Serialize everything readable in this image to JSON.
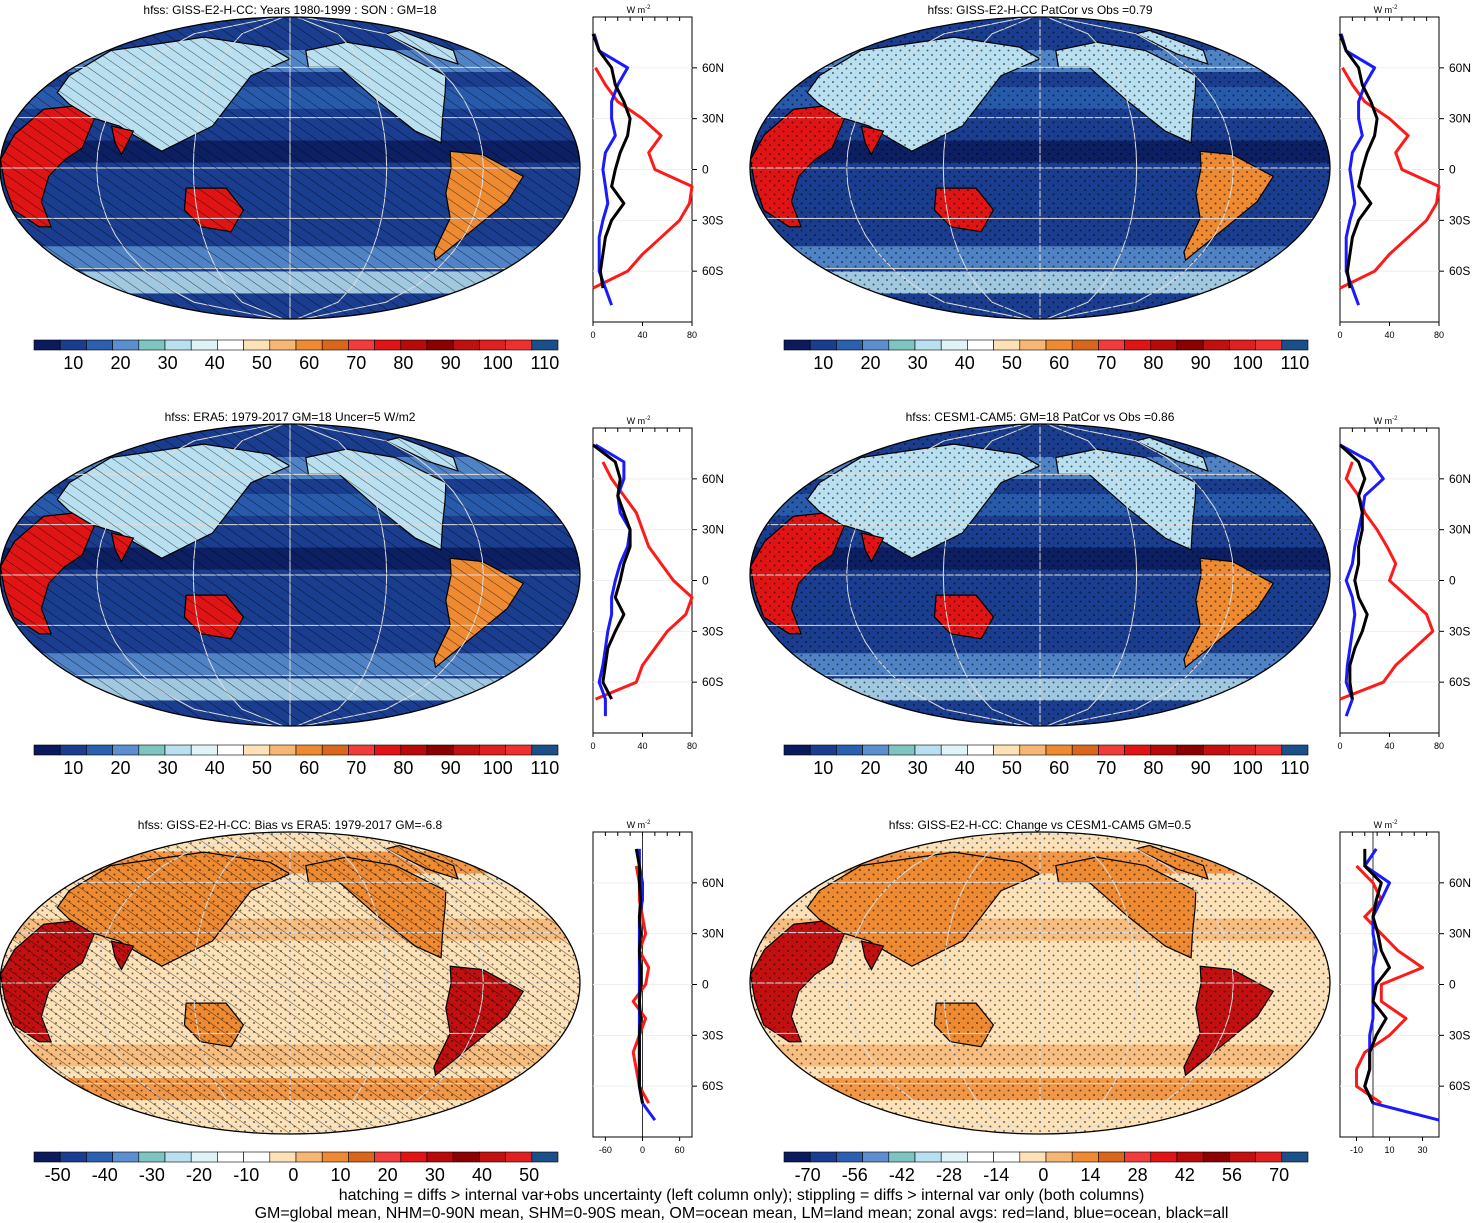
{
  "colors": {
    "abs_scale": [
      "#0b1a5c",
      "#1a3d8f",
      "#2b5fb0",
      "#5b8fd0",
      "#7ec4c0",
      "#b8e0f0",
      "#e0f4f8",
      "#ffffff",
      "#fde2b8",
      "#f7b774",
      "#ee8a32",
      "#d9661a",
      "#f23b3b",
      "#e01414",
      "#b80a0a",
      "#8b0000",
      "#c21010",
      "#e02020",
      "#ee3030",
      "#1a4f8a"
    ],
    "diff_scale": [
      "#0b1a5c",
      "#1a3d8f",
      "#2b5fb0",
      "#5b8fd0",
      "#7ec4c0",
      "#b8e0f0",
      "#e0f4f8",
      "#ffffff",
      "#ffffff",
      "#fde2b8",
      "#f7b774",
      "#ee8a32",
      "#d9661a",
      "#f23b3b",
      "#e01414",
      "#b80a0a",
      "#8b0000",
      "#c21010",
      "#e02020",
      "#1a4f8a"
    ],
    "land_line": "#ff1a1a",
    "ocean_line": "#1a1aff",
    "all_line": "#000000"
  },
  "chart_data": [
    {
      "type": "heatmap",
      "title": "hfss: GISS-E2-H-CC: Years 1980-1999 : SON : GM=18",
      "hatching": true,
      "stippling": false,
      "colorbar_labels": [
        "10",
        "20",
        "30",
        "40",
        "50",
        "60",
        "70",
        "80",
        "90",
        "100",
        "110"
      ],
      "zonal": {
        "unit": "W m-2",
        "lat_labels": [
          "60N",
          "30N",
          "0",
          "30S",
          "60S"
        ],
        "xticks": [
          "0",
          "40",
          "80"
        ],
        "xlim": [
          0,
          80
        ],
        "lat": [
          80,
          70,
          60,
          50,
          40,
          30,
          20,
          10,
          0,
          -10,
          -20,
          -30,
          -40,
          -50,
          -60,
          -70,
          -80
        ],
        "land": [
          null,
          null,
          2,
          10,
          20,
          40,
          55,
          45,
          50,
          80,
          78,
          70,
          55,
          40,
          28,
          0,
          null
        ],
        "ocean": [
          1,
          5,
          28,
          20,
          15,
          15,
          18,
          10,
          8,
          10,
          12,
          8,
          5,
          5,
          5,
          10,
          15
        ],
        "all": [
          0,
          5,
          15,
          18,
          25,
          30,
          28,
          22,
          18,
          15,
          25,
          15,
          10,
          8,
          6,
          8,
          null
        ]
      }
    },
    {
      "type": "heatmap",
      "title": "hfss: GISS-E2-H-CC PatCor vs Obs =0.79",
      "hatching": false,
      "stippling": true,
      "colorbar_labels": [
        "10",
        "20",
        "30",
        "40",
        "50",
        "60",
        "70",
        "80",
        "90",
        "100",
        "110"
      ],
      "zonal": {
        "unit": "W m-2",
        "lat_labels": [
          "60N",
          "30N",
          "0",
          "30S",
          "60S"
        ],
        "xticks": [
          "0",
          "40",
          "80"
        ],
        "xlim": [
          0,
          80
        ],
        "lat": [
          80,
          70,
          60,
          50,
          40,
          30,
          20,
          10,
          0,
          -10,
          -20,
          -30,
          -40,
          -50,
          -60,
          -70,
          -80
        ],
        "land": [
          null,
          null,
          2,
          10,
          20,
          40,
          55,
          45,
          50,
          80,
          78,
          70,
          55,
          40,
          28,
          0,
          null
        ],
        "ocean": [
          1,
          5,
          28,
          20,
          15,
          15,
          18,
          10,
          8,
          10,
          12,
          8,
          5,
          5,
          5,
          10,
          15
        ],
        "all": [
          0,
          5,
          15,
          18,
          25,
          30,
          28,
          22,
          18,
          15,
          25,
          15,
          10,
          8,
          6,
          8,
          null
        ]
      }
    },
    {
      "type": "heatmap",
      "title": "hfss: ERA5: 1979-2017 GM=18 Uncer=5 W/m2",
      "hatching": true,
      "stippling": false,
      "colorbar_labels": [
        "10",
        "20",
        "30",
        "40",
        "50",
        "60",
        "70",
        "80",
        "90",
        "100",
        "110"
      ],
      "zonal": {
        "unit": "W m-2",
        "lat_labels": [
          "60N",
          "30N",
          "0",
          "30S",
          "60S"
        ],
        "xticks": [
          "0",
          "40",
          "80"
        ],
        "xlim": [
          0,
          80
        ],
        "lat": [
          80,
          70,
          60,
          50,
          40,
          30,
          20,
          10,
          0,
          -10,
          -20,
          -30,
          -40,
          -50,
          -60,
          -70,
          -80
        ],
        "land": [
          null,
          8,
          15,
          25,
          35,
          40,
          45,
          55,
          65,
          80,
          75,
          60,
          50,
          40,
          35,
          2,
          null
        ],
        "ocean": [
          2,
          25,
          25,
          20,
          22,
          30,
          28,
          22,
          18,
          15,
          15,
          12,
          10,
          8,
          5,
          10,
          10
        ],
        "all": [
          0,
          18,
          22,
          20,
          25,
          30,
          30,
          25,
          22,
          18,
          25,
          18,
          12,
          10,
          8,
          15,
          null
        ]
      }
    },
    {
      "type": "heatmap",
      "title": "hfss: CESM1-CAM5: GM=18 PatCor vs Obs =0.86",
      "hatching": false,
      "stippling": true,
      "colorbar_labels": [
        "10",
        "20",
        "30",
        "40",
        "50",
        "60",
        "70",
        "80",
        "90",
        "100",
        "110"
      ],
      "zonal": {
        "unit": "W m-2",
        "lat_labels": [
          "60N",
          "30N",
          "0",
          "30S",
          "60S"
        ],
        "xticks": [
          "0",
          "40",
          "80"
        ],
        "xlim": [
          0,
          80
        ],
        "lat": [
          80,
          70,
          60,
          50,
          40,
          30,
          20,
          10,
          0,
          -10,
          -20,
          -30,
          -40,
          -50,
          -60,
          -70,
          -80
        ],
        "land": [
          null,
          10,
          5,
          15,
          20,
          30,
          38,
          45,
          40,
          55,
          70,
          75,
          60,
          45,
          35,
          0,
          null
        ],
        "ocean": [
          0,
          25,
          35,
          20,
          18,
          15,
          12,
          10,
          5,
          10,
          12,
          10,
          8,
          6,
          5,
          10,
          5
        ],
        "all": [
          0,
          15,
          20,
          15,
          18,
          18,
          15,
          15,
          12,
          15,
          22,
          18,
          12,
          8,
          8,
          10,
          null
        ]
      }
    },
    {
      "type": "heatmap",
      "title": "hfss: GISS-E2-H-CC: Bias vs ERA5: 1979-2017  GM=-6.8",
      "hatching": true,
      "stippling": true,
      "colorbar_labels": [
        "-50",
        "-40",
        "-30",
        "-20",
        "-10",
        "0",
        "10",
        "20",
        "30",
        "40",
        "50"
      ],
      "zonal": {
        "unit": "W m-2",
        "lat_labels": [
          "60N",
          "30N",
          "0",
          "30S",
          "60S"
        ],
        "xticks": [
          "-60",
          "0",
          "60"
        ],
        "xlim": [
          -80,
          80
        ],
        "lat": [
          80,
          70,
          60,
          50,
          40,
          30,
          20,
          10,
          0,
          -10,
          -20,
          -30,
          -40,
          -50,
          -60,
          -70,
          -80
        ],
        "land": [
          null,
          -10,
          -5,
          -5,
          0,
          5,
          -5,
          10,
          5,
          -15,
          5,
          -5,
          -15,
          -10,
          -5,
          10,
          null
        ],
        "ocean": [
          -5,
          -5,
          0,
          0,
          -5,
          -5,
          -5,
          -5,
          -5,
          -5,
          -5,
          -5,
          -5,
          -5,
          -5,
          0,
          20
        ],
        "all": [
          -10,
          -5,
          -5,
          -3,
          -5,
          -3,
          -5,
          -3,
          -3,
          -5,
          -3,
          -5,
          -5,
          -5,
          -5,
          0,
          null
        ]
      }
    },
    {
      "type": "heatmap",
      "title": "hfss: GISS-E2-H-CC: Change vs CESM1-CAM5 GM=0.5",
      "hatching": false,
      "stippling": true,
      "colorbar_labels": [
        "-70",
        "-56",
        "-42",
        "-28",
        "-14",
        "0",
        "14",
        "28",
        "42",
        "56",
        "70"
      ],
      "zonal": {
        "unit": "W m-2",
        "lat_labels": [
          "60N",
          "30N",
          "0",
          "30S",
          "60S"
        ],
        "xticks": [
          "-10",
          "10",
          "30"
        ],
        "xlim": [
          -20,
          40
        ],
        "lat": [
          80,
          70,
          60,
          50,
          40,
          30,
          20,
          10,
          0,
          -10,
          -20,
          -30,
          -40,
          -50,
          -60,
          -70,
          -80
        ],
        "land": [
          null,
          -10,
          0,
          5,
          -5,
          5,
          15,
          30,
          5,
          5,
          20,
          10,
          -5,
          -10,
          -10,
          5,
          null
        ],
        "ocean": [
          2,
          -5,
          10,
          5,
          0,
          0,
          2,
          0,
          0,
          0,
          0,
          -2,
          -2,
          -2,
          -5,
          0,
          40
        ],
        "all": [
          -5,
          -5,
          5,
          2,
          0,
          3,
          5,
          10,
          2,
          0,
          8,
          2,
          -2,
          -2,
          -5,
          0,
          null
        ]
      }
    }
  ],
  "footer": {
    "line1": "hatching = diffs > internal var+obs uncertainty (left column only); stippling = diffs > internal var only (both columns)",
    "line2": "GM=global mean, NHM=0-90N mean, SHM=0-90S mean, OM=ocean mean, LM=land mean; zonal avgs: red=land, blue=ocean, black=all"
  }
}
